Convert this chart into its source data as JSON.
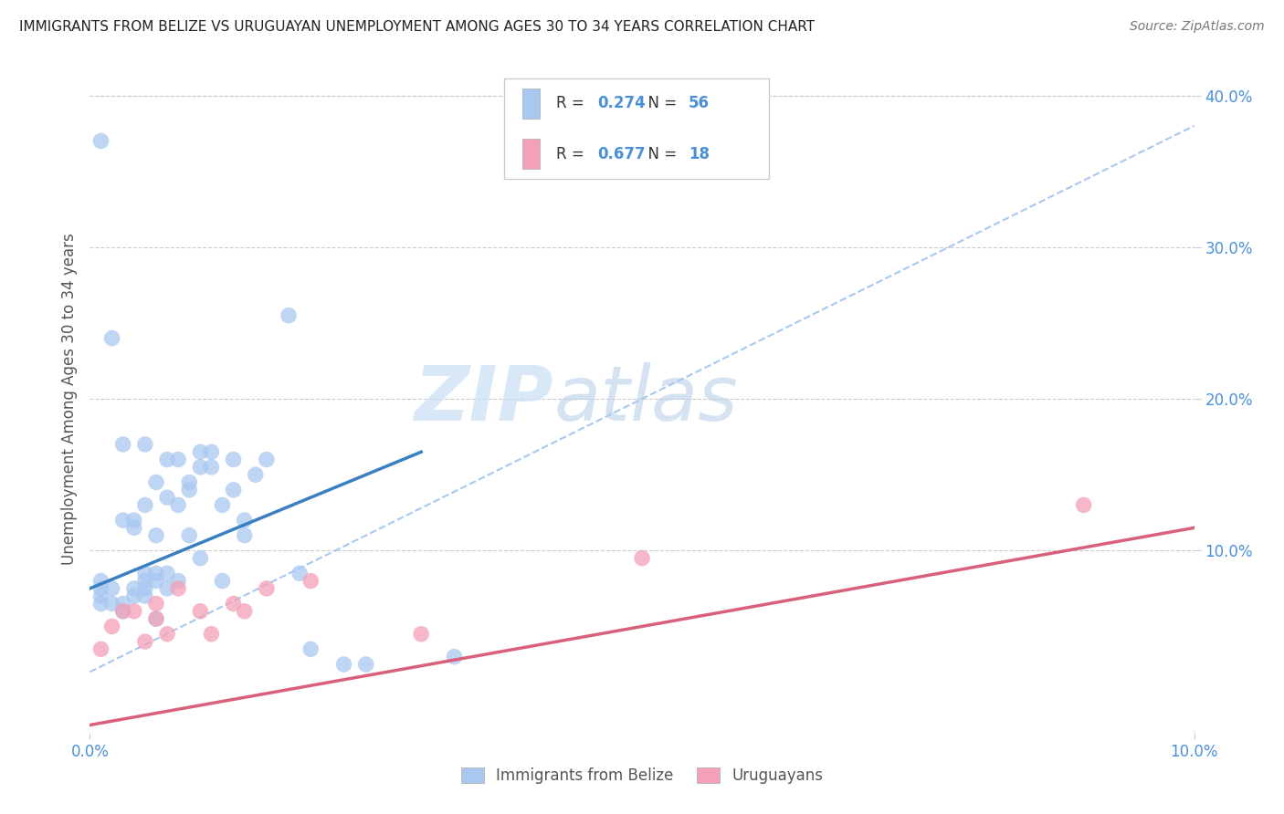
{
  "title": "IMMIGRANTS FROM BELIZE VS URUGUAYAN UNEMPLOYMENT AMONG AGES 30 TO 34 YEARS CORRELATION CHART",
  "source": "Source: ZipAtlas.com",
  "ylabel": "Unemployment Among Ages 30 to 34 years",
  "xlim": [
    0.0,
    0.1
  ],
  "ylim": [
    -0.02,
    0.42
  ],
  "yticks_right": [
    0.1,
    0.2,
    0.3,
    0.4
  ],
  "xtick_left": "0.0%",
  "xtick_right": "10.0%",
  "blue_color": "#A8C8F0",
  "pink_color": "#F4A0B8",
  "blue_line_color": "#3A7FC1",
  "pink_line_color": "#D9607A",
  "dashed_line_color": "#A8C8F0",
  "R_blue": 0.274,
  "N_blue": 56,
  "R_pink": 0.677,
  "N_pink": 18,
  "blue_scatter_x": [
    0.001,
    0.001,
    0.001,
    0.001,
    0.001,
    0.002,
    0.002,
    0.002,
    0.003,
    0.003,
    0.003,
    0.003,
    0.004,
    0.004,
    0.004,
    0.004,
    0.005,
    0.005,
    0.005,
    0.005,
    0.005,
    0.005,
    0.006,
    0.006,
    0.006,
    0.006,
    0.006,
    0.007,
    0.007,
    0.007,
    0.007,
    0.008,
    0.008,
    0.008,
    0.009,
    0.009,
    0.009,
    0.01,
    0.01,
    0.01,
    0.011,
    0.011,
    0.012,
    0.012,
    0.013,
    0.013,
    0.014,
    0.014,
    0.015,
    0.016,
    0.018,
    0.019,
    0.02,
    0.023,
    0.025,
    0.033
  ],
  "blue_scatter_y": [
    0.37,
    0.08,
    0.075,
    0.07,
    0.065,
    0.24,
    0.075,
    0.065,
    0.17,
    0.12,
    0.065,
    0.06,
    0.12,
    0.115,
    0.075,
    0.07,
    0.17,
    0.13,
    0.085,
    0.08,
    0.075,
    0.07,
    0.145,
    0.11,
    0.085,
    0.08,
    0.055,
    0.16,
    0.135,
    0.085,
    0.075,
    0.16,
    0.13,
    0.08,
    0.145,
    0.14,
    0.11,
    0.165,
    0.155,
    0.095,
    0.165,
    0.155,
    0.13,
    0.08,
    0.16,
    0.14,
    0.12,
    0.11,
    0.15,
    0.16,
    0.255,
    0.085,
    0.035,
    0.025,
    0.025,
    0.03
  ],
  "pink_scatter_x": [
    0.001,
    0.002,
    0.003,
    0.004,
    0.005,
    0.006,
    0.006,
    0.007,
    0.008,
    0.01,
    0.011,
    0.013,
    0.014,
    0.016,
    0.02,
    0.03,
    0.05,
    0.09
  ],
  "pink_scatter_y": [
    0.035,
    0.05,
    0.06,
    0.06,
    0.04,
    0.065,
    0.055,
    0.045,
    0.075,
    0.06,
    0.045,
    0.065,
    0.06,
    0.075,
    0.08,
    0.045,
    0.095,
    0.13
  ],
  "blue_trend_x": [
    0.0,
    0.03
  ],
  "blue_trend_y": [
    0.075,
    0.165
  ],
  "pink_trend_x": [
    0.0,
    0.1
  ],
  "pink_trend_y": [
    -0.015,
    0.115
  ],
  "dashed_trend_x": [
    0.0,
    0.1
  ],
  "dashed_trend_y": [
    0.02,
    0.38
  ],
  "watermark_zip": "ZIP",
  "watermark_atlas": "atlas",
  "bg_color": "#FFFFFF",
  "grid_color": "#CCCCCC",
  "legend_border_color": "#CCCCCC",
  "tick_color": "#4A90D9",
  "label_color": "#555555"
}
